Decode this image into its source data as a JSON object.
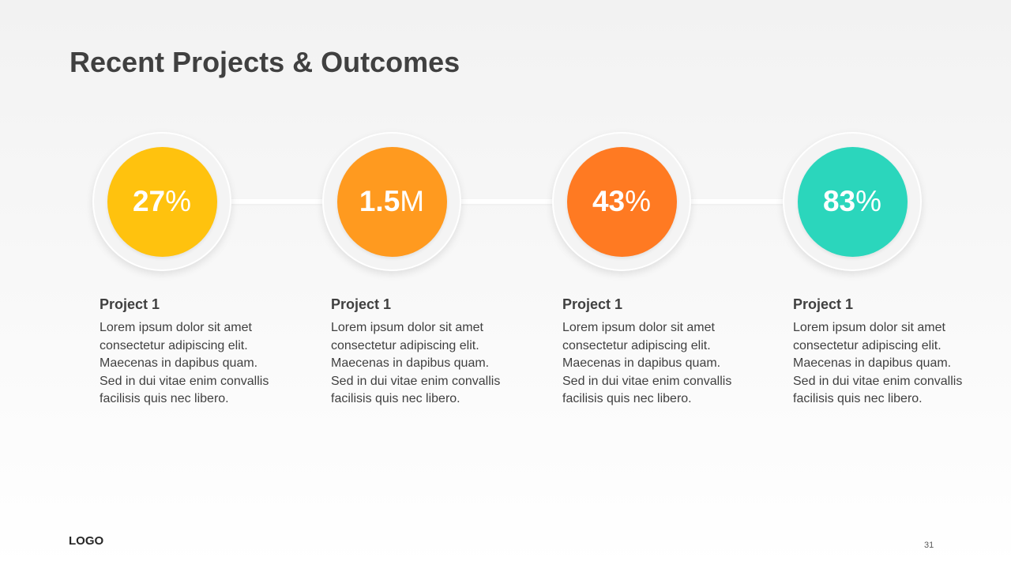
{
  "slide": {
    "title": "Recent Projects & Outcomes",
    "logo": "LOGO",
    "page_number": "31"
  },
  "metrics": [
    {
      "value": "27",
      "unit": "%",
      "color": "#FFC20E",
      "project": "Project 1",
      "description": "Lorem ipsum dolor sit amet consectetur adipiscing elit. Maecenas in dapibus quam. Sed in dui vitae enim convallis facilisis quis nec libero."
    },
    {
      "value": "1.5",
      "unit": "M",
      "color": "#FF9A1F",
      "project": "Project 1",
      "description": "Lorem ipsum dolor sit amet consectetur adipiscing elit. Maecenas in dapibus quam. Sed in dui vitae enim convallis facilisis quis nec libero."
    },
    {
      "value": "43",
      "unit": "%",
      "color": "#FF7A22",
      "project": "Project 1",
      "description": "Lorem ipsum dolor sit amet consectetur adipiscing elit. Maecenas in dapibus quam. Sed in dui vitae enim convallis facilisis quis nec libero."
    },
    {
      "value": "83",
      "unit": "%",
      "color": "#2BD6BC",
      "project": "Project 1",
      "description": "Lorem ipsum dolor sit amet consectetur adipiscing elit. Maecenas in dapibus quam. Sed in dui vitae enim convallis facilisis quis nec libero."
    }
  ]
}
